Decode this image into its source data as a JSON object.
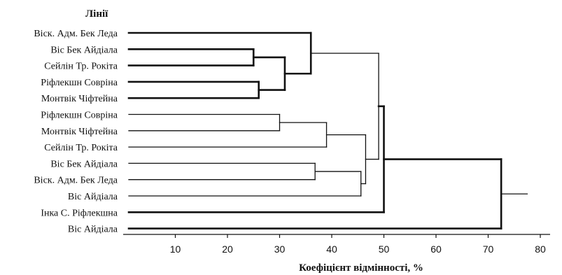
{
  "chart_data": {
    "type": "dendrogram",
    "header": "Лінії",
    "xlabel": "Коефіцієнт відмінності, %",
    "xlim": [
      0,
      85
    ],
    "xticks": [
      10,
      20,
      30,
      40,
      50,
      60,
      70,
      80
    ],
    "leaves": [
      "Віск. Адм. Бек Леда",
      "Віс Бек Айдіала",
      "Сейлін Тр. Рокіта",
      "Ріфлекшн Совріна",
      "Монтвік Чіфтейна",
      "Ріфлекшн Совріна",
      "Монтвік Чіфтейна",
      "Сейлін Тр. Рокіта",
      "Віс Бек Айдіала",
      "Віск. Адм. Бек Леда",
      "Віс Айдіала",
      "Інка С. Ріфлекшна",
      "Віс Айдіала"
    ],
    "merges": [
      {
        "id": "n1",
        "a": 1,
        "b": 2,
        "height": 25.0,
        "bold": true
      },
      {
        "id": "n2",
        "a": 3,
        "b": 4,
        "height": 26.0,
        "bold": true
      },
      {
        "id": "n3",
        "a": "n1",
        "b": "n2",
        "height": 31.0,
        "bold": true
      },
      {
        "id": "n4",
        "a": 0,
        "b": "n3",
        "height": 36.0,
        "bold": true
      },
      {
        "id": "n5",
        "a": 5,
        "b": 6,
        "height": 30.0,
        "bold": false
      },
      {
        "id": "n6",
        "a": "n5",
        "b": 7,
        "height": 39.0,
        "bold": false
      },
      {
        "id": "n7",
        "a": 8,
        "b": 9,
        "height": 36.8,
        "bold": false
      },
      {
        "id": "n8",
        "a": "n7",
        "b": 10,
        "height": 45.6,
        "bold": false
      },
      {
        "id": "n9",
        "a": "n6",
        "b": "n8",
        "height": 46.5,
        "bold": false
      },
      {
        "id": "n10",
        "a": "n4",
        "b": "n9",
        "height": 49.0,
        "bold": false
      },
      {
        "id": "n11",
        "a": "n10",
        "b": 11,
        "height": 50.0,
        "bold": true
      },
      {
        "id": "n12",
        "a": "n11",
        "b": 12,
        "height": 72.5,
        "bold": true
      }
    ],
    "root_tail_to": 77.5
  }
}
